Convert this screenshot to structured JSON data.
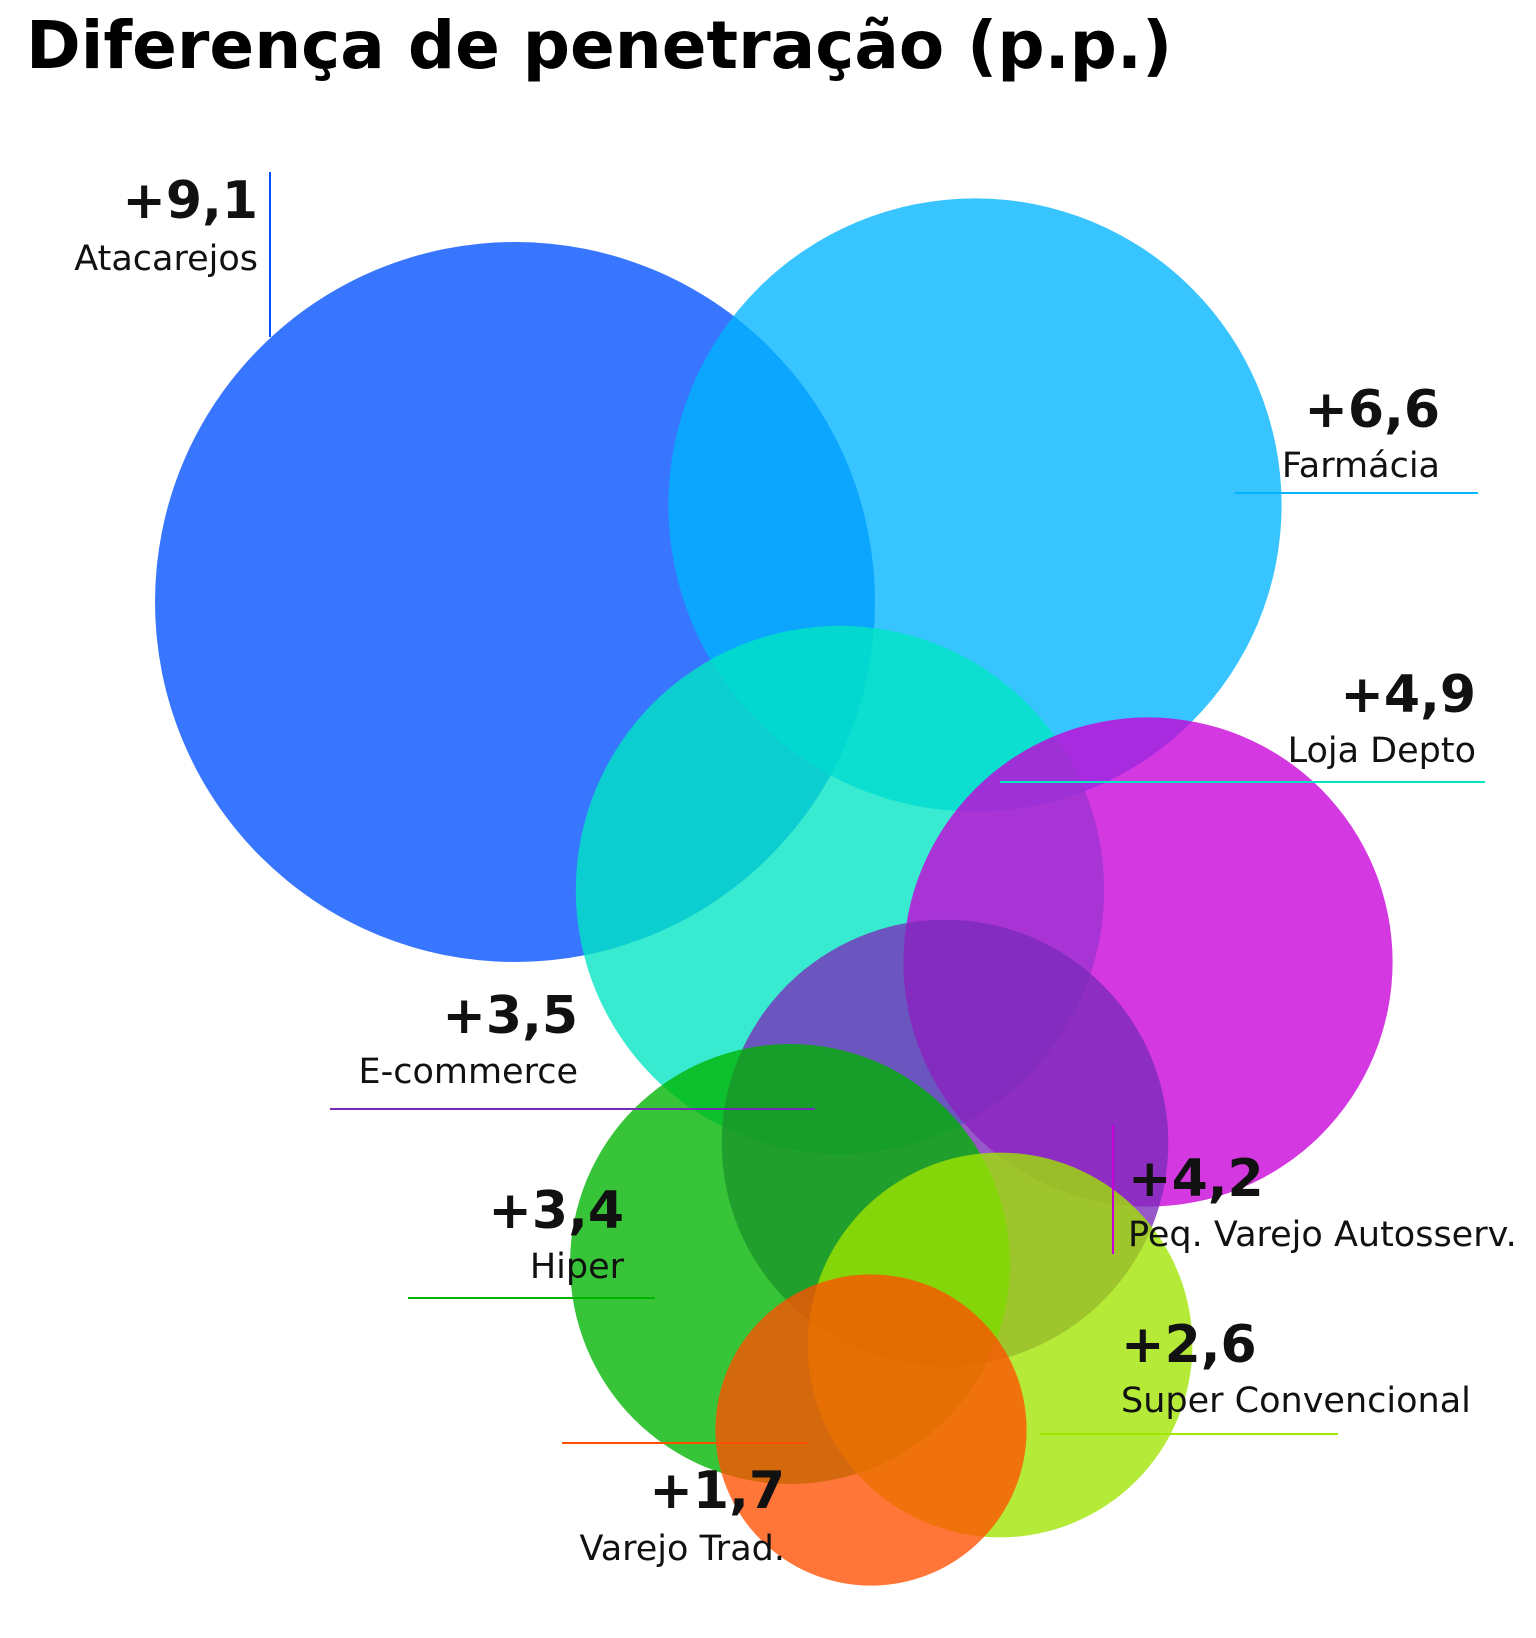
{
  "chart_data": {
    "type": "bubble",
    "title": "Diferença de penetração (p.p.)",
    "series": [
      {
        "label": "Atacarejos",
        "value_text": "+9,1",
        "value": 9.1,
        "color": "#0050ff"
      },
      {
        "label": "Farmácia",
        "value_text": "+6,6",
        "value": 6.6,
        "color": "#00b4ff"
      },
      {
        "label": "Loja Depto",
        "value_text": "+4,9",
        "value": 4.9,
        "color": "#00e6c3"
      },
      {
        "label": "Peq. Varejo Autosserv.",
        "value_text": "+4,2",
        "value": 4.2,
        "color": "#c800d7"
      },
      {
        "label": "E-commerce",
        "value_text": "+3,5",
        "value": 3.5,
        "color": "#7a2ab8"
      },
      {
        "label": "Hiper",
        "value_text": "+3,4",
        "value": 3.4,
        "color": "#00b400"
      },
      {
        "label": "Super Convencional",
        "value_text": "+2,6",
        "value": 2.6,
        "color": "#a0e600"
      },
      {
        "label": "Varejo Trad.",
        "value_text": "+1,7",
        "value": 1.7,
        "color": "#ff5000"
      }
    ]
  }
}
